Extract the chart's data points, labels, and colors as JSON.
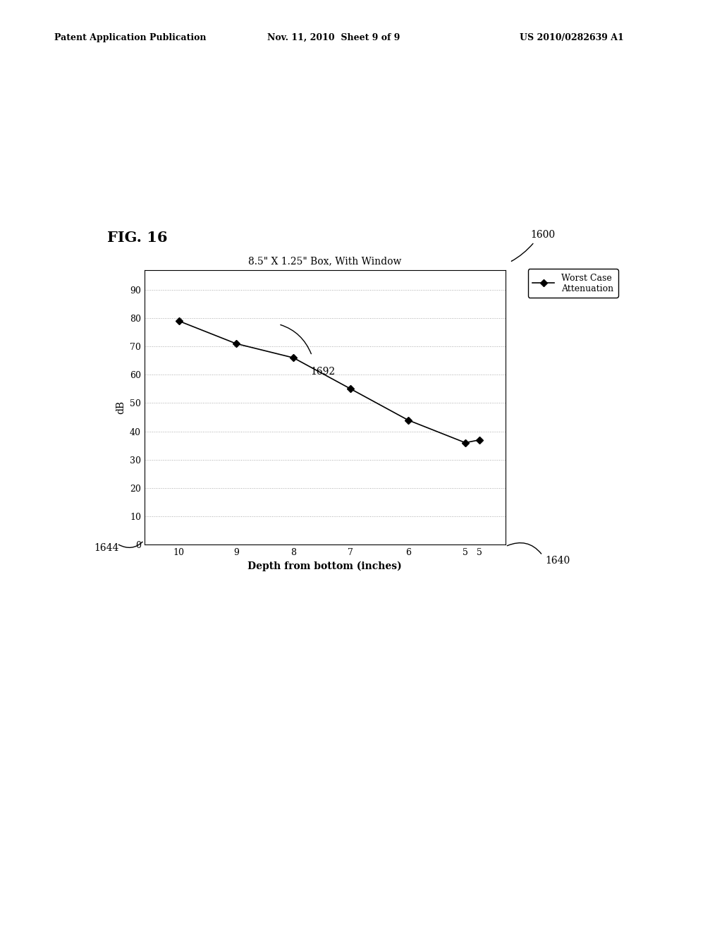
{
  "title": "8.5\" X 1.25\" Box, With Window",
  "xlabel": "Depth from bottom (inches)",
  "ylabel": "dB",
  "fig_label": "FIG. 16",
  "patent_header_left": "Patent Application Publication",
  "patent_header_mid": "Nov. 11, 2010  Sheet 9 of 9",
  "patent_header_right": "US 2010/0282639 A1",
  "x_data": [
    10,
    9,
    8,
    7,
    6,
    5,
    4.75
  ],
  "y_data": [
    79,
    71,
    66,
    55,
    44,
    36,
    37
  ],
  "y_ticks": [
    0,
    10,
    20,
    30,
    40,
    50,
    60,
    70,
    80,
    90
  ],
  "ylim": [
    0,
    97
  ],
  "xlim_left": 10.6,
  "xlim_right": 4.3,
  "legend_label": "Worst Case\nAttenuation",
  "line_color": "#000000",
  "marker": "D",
  "marker_size": 5,
  "grid_color": "#aaaaaa",
  "background_color": "#ffffff",
  "chart_background": "#ffffff",
  "ref_1600": "1600",
  "ref_1640": "1640",
  "ref_1644": "1644",
  "ref_1692": "1692"
}
